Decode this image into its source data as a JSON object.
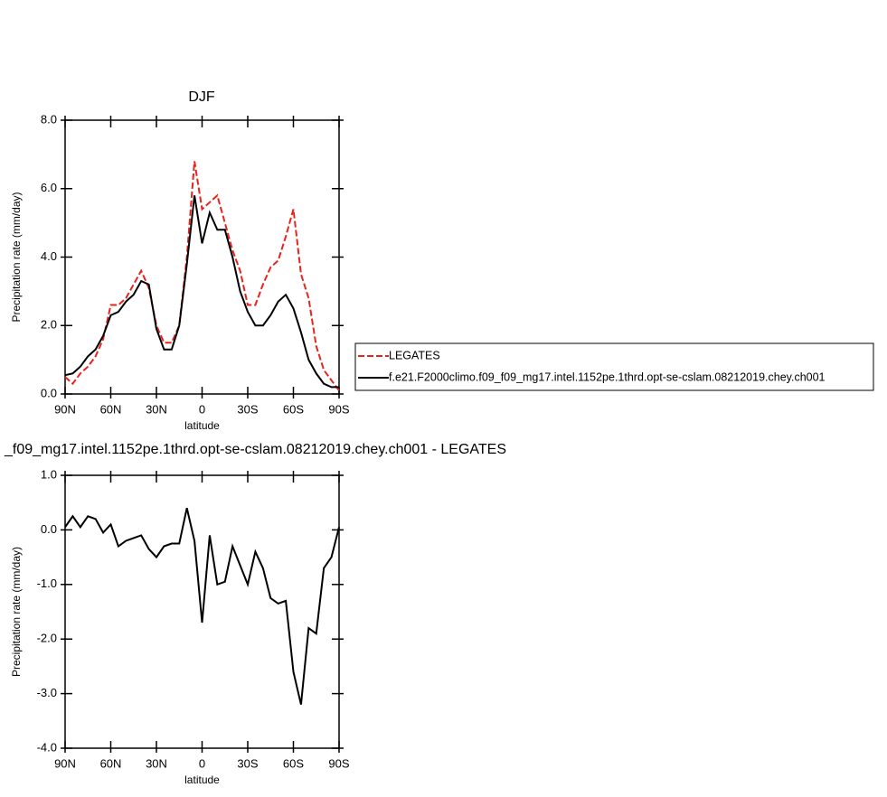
{
  "chart_data": [
    {
      "type": "line",
      "title": "DJF",
      "x_label": "latitude",
      "y_label": "Precipitation rate (mm/day)",
      "x": [
        90,
        85,
        80,
        75,
        70,
        65,
        60,
        55,
        50,
        45,
        40,
        35,
        30,
        25,
        20,
        15,
        10,
        5,
        0,
        -5,
        -10,
        -15,
        -20,
        -25,
        -30,
        -35,
        -40,
        -45,
        -50,
        -55,
        -60,
        -65,
        -70,
        -75,
        -80,
        -85,
        -90
      ],
      "xlim": [
        90,
        -90
      ],
      "xticks": [
        {
          "value": 90,
          "label": "90N"
        },
        {
          "value": 60,
          "label": "60N"
        },
        {
          "value": 30,
          "label": "30N"
        },
        0,
        {
          "value": -30,
          "label": "30S"
        },
        {
          "value": -60,
          "label": "60S"
        },
        {
          "value": -90,
          "label": "90S"
        }
      ],
      "ylim": [
        0,
        8
      ],
      "yticks": [
        {
          "value": 0,
          "label": "0.0"
        },
        {
          "value": 2,
          "label": "2.0"
        },
        {
          "value": 4,
          "label": "4.0"
        },
        {
          "value": 6,
          "label": "6.0"
        },
        {
          "value": 8,
          "label": "8.0"
        }
      ],
      "series": [
        {
          "name": "LEGATES",
          "color": "#e8231d",
          "dashed": true,
          "values": [
            0.5,
            0.3,
            0.6,
            0.8,
            1.1,
            1.6,
            2.6,
            2.6,
            2.8,
            3.2,
            3.6,
            3.1,
            2.0,
            1.5,
            1.5,
            2.0,
            4.0,
            6.8,
            5.4,
            5.6,
            5.8,
            5.0,
            4.2,
            3.6,
            2.6,
            2.6,
            3.2,
            3.7,
            3.9,
            4.6,
            5.4,
            3.5,
            2.8,
            1.4,
            0.7,
            0.4,
            0.1
          ]
        },
        {
          "name": "f.e21.F2000climo.f09_f09_mg17.intel.1152pe.1thrd.opt-se-cslam.08212019.chey.ch001",
          "color": "#000000",
          "dashed": false,
          "values": [
            0.55,
            0.6,
            0.8,
            1.1,
            1.3,
            1.7,
            2.3,
            2.4,
            2.7,
            2.9,
            3.3,
            3.2,
            1.9,
            1.3,
            1.3,
            2.0,
            3.8,
            5.8,
            4.4,
            5.3,
            4.8,
            4.8,
            4.0,
            3.0,
            2.4,
            2.0,
            2.0,
            2.3,
            2.7,
            2.9,
            2.5,
            1.8,
            1.0,
            0.6,
            0.3,
            0.2,
            0.2
          ]
        }
      ]
    },
    {
      "type": "line",
      "title": "_f09_mg17.intel.1152pe.1thrd.opt-se-cslam.08212019.chey.ch001 - LEGATES",
      "x_label": "latitude",
      "y_label": "Precipitation rate (mm/day)",
      "x": [
        90,
        85,
        80,
        75,
        70,
        65,
        60,
        55,
        50,
        45,
        40,
        35,
        30,
        25,
        20,
        15,
        10,
        5,
        0,
        -5,
        -10,
        -15,
        -20,
        -25,
        -30,
        -35,
        -40,
        -45,
        -50,
        -55,
        -60,
        -65,
        -70,
        -75,
        -80,
        -85,
        -90
      ],
      "xlim": [
        90,
        -90
      ],
      "xticks": [
        {
          "value": 90,
          "label": "90N"
        },
        {
          "value": 60,
          "label": "60N"
        },
        {
          "value": 30,
          "label": "30N"
        },
        0,
        {
          "value": -30,
          "label": "30S"
        },
        {
          "value": -60,
          "label": "60S"
        },
        {
          "value": -90,
          "label": "90S"
        }
      ],
      "ylim": [
        -4,
        1
      ],
      "yticks": [
        {
          "value": -4,
          "label": "-4.0"
        },
        {
          "value": -3,
          "label": "-3.0"
        },
        {
          "value": -2,
          "label": "-2.0"
        },
        {
          "value": -1,
          "label": "-1.0"
        },
        {
          "value": 0,
          "label": "0.0"
        },
        {
          "value": 1,
          "label": "1.0"
        }
      ],
      "series": [
        {
          "color": "#000000",
          "dashed": false,
          "values": [
            0.05,
            0.25,
            0.05,
            0.25,
            0.2,
            -0.05,
            0.1,
            -0.3,
            -0.2,
            -0.15,
            -0.1,
            -0.35,
            -0.5,
            -0.3,
            -0.25,
            -0.25,
            0.4,
            -0.2,
            -1.7,
            -0.1,
            -1.0,
            -0.95,
            -0.3,
            -0.65,
            -1.0,
            -0.4,
            -0.7,
            -1.25,
            -1.35,
            -1.3,
            -2.6,
            -3.2,
            -1.8,
            -1.9,
            -0.7,
            -0.5,
            0.05
          ]
        }
      ]
    }
  ]
}
